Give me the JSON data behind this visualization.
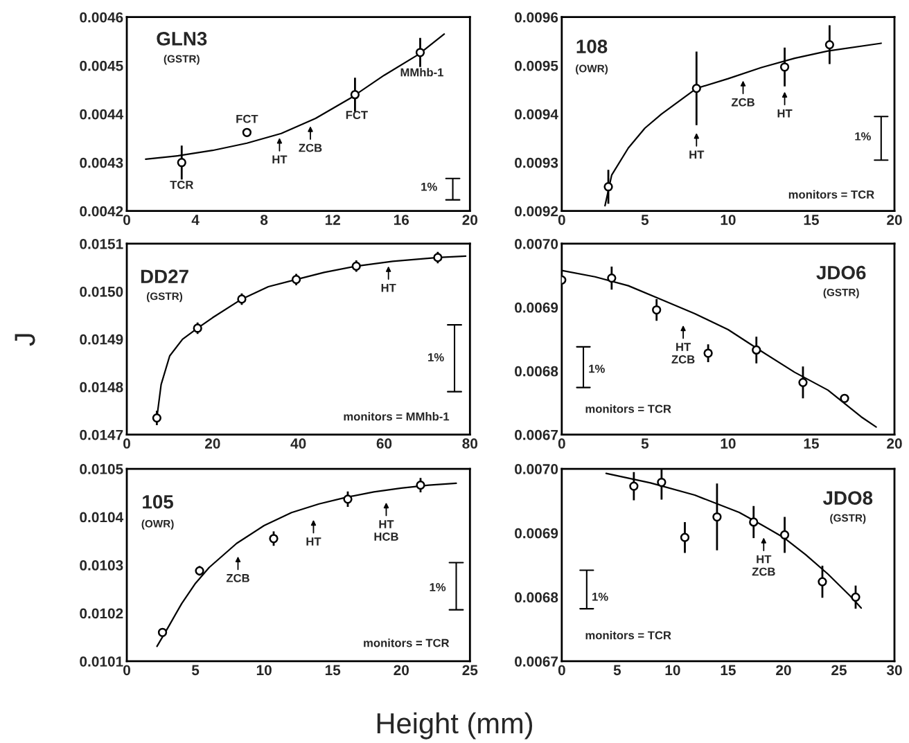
{
  "chart_data": [
    {
      "type": "scatter",
      "title": "GLN3",
      "subtitle": "(GSTR)",
      "xlim": [
        0,
        20
      ],
      "xticks": [
        0,
        4,
        8,
        12,
        16,
        20
      ],
      "ylim": [
        0.0042,
        0.0046
      ],
      "yticks": [
        {
          "value": 0.0042,
          "label": "0.0042"
        },
        {
          "value": 0.0043,
          "label": "0.0043"
        },
        {
          "value": 0.0044,
          "label": "0.0044"
        },
        {
          "value": 0.0045,
          "label": "0.0045"
        },
        {
          "value": 0.0046,
          "label": "0.0046"
        }
      ],
      "grid": false,
      "series": [
        {
          "color": "#000000",
          "marker": "circle",
          "x": [
            3.2,
            7.0,
            13.3,
            17.1
          ],
          "values": [
            0.0043,
            0.004362,
            0.00444,
            0.004527
          ],
          "errors": [
            3.5e-05,
            8e-06,
            3.5e-05,
            3e-05
          ]
        },
        {
          "type": "line",
          "color": "#000000",
          "x": [
            1.1,
            3,
            5,
            7,
            9,
            11,
            13,
            15,
            17,
            18.5
          ],
          "values": [
            0.004307,
            0.004314,
            0.004325,
            0.00434,
            0.00436,
            0.004391,
            0.004432,
            0.00448,
            0.004523,
            0.004565
          ]
        }
      ],
      "annotations": [
        "1%",
        "TCR",
        "FCT",
        "HT",
        "ZCB",
        "FCT",
        "MMhb-1"
      ]
    },
    {
      "type": "scatter",
      "title": "108",
      "subtitle": "(OWR)",
      "xlim": [
        0,
        20
      ],
      "xticks": [
        0,
        5,
        10,
        15,
        20
      ],
      "ylim": [
        0.0092,
        0.0096
      ],
      "yticks": [
        {
          "value": 0.0092,
          "label": "0.0092"
        },
        {
          "value": 0.0093,
          "label": "0.0093"
        },
        {
          "value": 0.0094,
          "label": "0.0094"
        },
        {
          "value": 0.0095,
          "label": "0.0095"
        },
        {
          "value": 0.0096,
          "label": "0.0096"
        }
      ],
      "grid": false,
      "series": [
        {
          "color": "#000000",
          "marker": "circle",
          "x": [
            2.8,
            8.1,
            13.4,
            16.1
          ],
          "values": [
            0.00925,
            0.009453,
            0.009497,
            0.009543
          ],
          "errors": [
            3.5e-05,
            7.6e-05,
            4e-05,
            4e-05
          ]
        },
        {
          "type": "line",
          "color": "#000000",
          "x": [
            2.6,
            3,
            4,
            5,
            6,
            8.1,
            10,
            12,
            14,
            16,
            19.2
          ],
          "values": [
            0.009211,
            0.009274,
            0.00933,
            0.009371,
            0.0094,
            0.009453,
            0.009473,
            0.009496,
            0.009515,
            0.00953,
            0.009546
          ]
        }
      ],
      "annotations": [
        "1%",
        "monitors = TCR",
        "HT",
        "ZCB",
        "HT"
      ]
    },
    {
      "type": "scatter",
      "title": "DD27",
      "subtitle": "(GSTR)",
      "ylabel": "J",
      "xlim": [
        0,
        80
      ],
      "xticks": [
        0,
        20,
        40,
        60,
        80
      ],
      "ylim": [
        0.0147,
        0.0151
      ],
      "yticks": [
        {
          "value": 0.0147,
          "label": "0.0147"
        },
        {
          "value": 0.0148,
          "label": "0.0148"
        },
        {
          "value": 0.0149,
          "label": "0.0149"
        },
        {
          "value": 0.015,
          "label": "0.0150"
        },
        {
          "value": 0.0151,
          "label": "0.0151"
        }
      ],
      "grid": false,
      "series": [
        {
          "color": "#000000",
          "marker": "circle",
          "x": [
            7.0,
            16.5,
            26.8,
            39.5,
            53.5,
            72.5
          ],
          "values": [
            0.014735,
            0.014923,
            0.014984,
            0.015025,
            0.015053,
            0.015071
          ],
          "errors": [
            1.5e-05,
            1.2e-05,
            1.2e-05,
            1.2e-05,
            1.2e-05,
            1.2e-05
          ]
        },
        {
          "type": "line",
          "color": "#000000",
          "x": [
            7,
            8,
            10,
            13,
            16.5,
            20,
            26.8,
            33,
            39.5,
            46,
            53.5,
            62,
            72.5,
            79
          ],
          "values": [
            0.014735,
            0.014805,
            0.014865,
            0.0149,
            0.014923,
            0.014945,
            0.014984,
            0.01501,
            0.015025,
            0.01504,
            0.015053,
            0.015063,
            0.015071,
            0.015074
          ]
        }
      ],
      "annotations": [
        "1%",
        "monitors = MMhb-1",
        "HT"
      ]
    },
    {
      "type": "scatter",
      "title": "JDO6",
      "subtitle": "(GSTR)",
      "xlim": [
        0,
        20
      ],
      "xticks": [
        0,
        5,
        10,
        15,
        20
      ],
      "ylim": [
        0.0067,
        0.007
      ],
      "yticks": [
        {
          "value": 0.0067,
          "label": "0.0067"
        },
        {
          "value": 0.0068,
          "label": "0.0068"
        },
        {
          "value": 0.0069,
          "label": "0.0069"
        },
        {
          "value": 0.007,
          "label": "0.0070"
        }
      ],
      "grid": false,
      "series": [
        {
          "color": "#000000",
          "marker": "circle",
          "x": [
            0,
            3.0,
            5.7,
            8.8,
            11.7,
            14.5,
            17.0
          ],
          "values": [
            0.006943,
            0.006946,
            0.006896,
            0.006828,
            0.006833,
            0.006782,
            0.006757
          ],
          "errors": [
            5e-06,
            1.8e-05,
            1.7e-05,
            1.4e-05,
            2.1e-05,
            2.5e-05,
            6e-06
          ]
        },
        {
          "type": "line",
          "color": "#000000",
          "x": [
            0,
            2,
            4,
            6,
            8,
            10,
            12,
            14,
            16,
            18,
            18.9
          ],
          "values": [
            0.006958,
            0.006948,
            0.006934,
            0.006912,
            0.00689,
            0.006865,
            0.006831,
            0.006798,
            0.00677,
            0.006728,
            0.006712
          ]
        }
      ],
      "annotations": [
        "1%",
        "monitors = TCR",
        "HT\nZCB"
      ]
    },
    {
      "type": "scatter",
      "title": "105",
      "subtitle": "(OWR)",
      "xlabel": "Height (mm)",
      "xlim": [
        0,
        25
      ],
      "xticks": [
        0,
        5,
        10,
        15,
        20,
        25
      ],
      "ylim": [
        0.0101,
        0.0105
      ],
      "yticks": [
        {
          "value": 0.0101,
          "label": "0.0101"
        },
        {
          "value": 0.0102,
          "label": "0.0102"
        },
        {
          "value": 0.0103,
          "label": "0.0103"
        },
        {
          "value": 0.0104,
          "label": "0.0104"
        },
        {
          "value": 0.0105,
          "label": "0.0105"
        }
      ],
      "grid": false,
      "series": [
        {
          "color": "#000000",
          "marker": "circle",
          "x": [
            2.6,
            5.3,
            10.7,
            16.1,
            21.4
          ],
          "values": [
            0.01016,
            0.010288,
            0.010355,
            0.010437,
            0.010466
          ],
          "errors": [
            8e-06,
            1e-05,
            1.5e-05,
            1.6e-05,
            1.5e-05
          ]
        },
        {
          "type": "line",
          "color": "#000000",
          "x": [
            2.2,
            3,
            4,
            5,
            6,
            8,
            10,
            12,
            14,
            16,
            18,
            20,
            22,
            24
          ],
          "values": [
            0.010131,
            0.01017,
            0.01022,
            0.010262,
            0.010295,
            0.010345,
            0.010382,
            0.010409,
            0.010427,
            0.010441,
            0.010452,
            0.01046,
            0.010466,
            0.01047
          ]
        }
      ],
      "annotations": [
        "1%",
        "monitors = TCR",
        "ZCB",
        "HT",
        "HT\nHCB"
      ]
    },
    {
      "type": "scatter",
      "title": "JDO8",
      "subtitle": "(GSTR)",
      "xlim": [
        0,
        30
      ],
      "xticks": [
        0,
        5,
        10,
        15,
        20,
        25,
        30
      ],
      "ylim": [
        0.0067,
        0.007
      ],
      "yticks": [
        {
          "value": 0.0067,
          "label": "0.0067"
        },
        {
          "value": 0.0068,
          "label": "0.0068"
        },
        {
          "value": 0.0069,
          "label": "0.0069"
        },
        {
          "value": 0.007,
          "label": "0.0070"
        }
      ],
      "grid": false,
      "series": [
        {
          "color": "#000000",
          "marker": "circle",
          "x": [
            6.5,
            9.0,
            11.1,
            14.0,
            17.3,
            20.1,
            23.5,
            26.5
          ],
          "values": [
            0.006973,
            0.006979,
            0.006893,
            0.006925,
            0.006917,
            0.006897,
            0.006824,
            0.0068
          ],
          "errors": [
            2.2e-05,
            2.7e-05,
            2.4e-05,
            5.2e-05,
            2.5e-05,
            2.8e-05,
            2.5e-05,
            1.8e-05
          ]
        },
        {
          "type": "line",
          "color": "#000000",
          "x": [
            4,
            8,
            12,
            16,
            18,
            20,
            22,
            24,
            26,
            27
          ],
          "values": [
            0.006993,
            0.006978,
            0.006959,
            0.006932,
            0.006913,
            0.006893,
            0.006866,
            0.006836,
            0.006802,
            0.006783
          ]
        }
      ],
      "annotations": [
        "1%",
        "monitors = TCR",
        "HT\nZCB"
      ]
    }
  ]
}
